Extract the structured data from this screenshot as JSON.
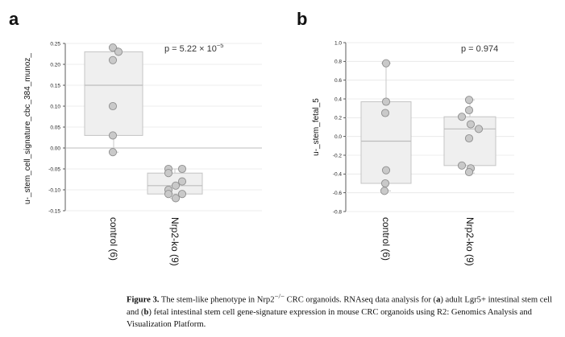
{
  "panels": [
    {
      "letter": "a",
      "ylabel": "u-_stem_cell_signature_cbc_384_munoz_",
      "pvalue": {
        "prefix": "p = 5.22 × 10",
        "exp": "−5"
      },
      "chart_data": {
        "type": "box",
        "categories": [
          "control (6)",
          "Nrp2-ko (9)"
        ],
        "ylim": [
          -0.15,
          0.25
        ],
        "yticks": [
          0.25,
          0.2,
          0.15,
          0.1,
          0.05,
          0.0,
          -0.05,
          -0.1,
          -0.15
        ],
        "tick_labels": [
          "0.25",
          "0.20",
          "0.15",
          "0.10",
          "0.05",
          "0.00",
          "-0.05",
          "-0.10",
          "-0.15"
        ],
        "reference_line": 0,
        "boxes": [
          {
            "q1": 0.03,
            "median": 0.15,
            "q3": 0.23,
            "whisker_low": -0.01,
            "whisker_high": 0.24
          },
          {
            "q1": -0.11,
            "median": -0.09,
            "q3": -0.06,
            "whisker_low": -0.12,
            "whisker_high": -0.05
          }
        ],
        "points": [
          [
            0.24,
            0.23,
            0.21,
            0.1,
            0.03,
            -0.01
          ],
          [
            -0.05,
            -0.05,
            -0.06,
            -0.08,
            -0.09,
            -0.1,
            -0.11,
            -0.11,
            -0.12
          ]
        ]
      }
    },
    {
      "letter": "b",
      "ylabel": "u-_stem_fetal_5",
      "pvalue": {
        "prefix": "p = 0.974",
        "exp": ""
      },
      "chart_data": {
        "type": "box",
        "categories": [
          "control (6)",
          "Nrp2-ko (9)"
        ],
        "ylim": [
          -0.8,
          1.0
        ],
        "yticks": [
          1.0,
          0.8,
          0.6,
          0.4,
          0.2,
          0.0,
          -0.2,
          -0.4,
          -0.6,
          -0.8
        ],
        "tick_labels": [
          "1.0",
          "0.8",
          "0.6",
          "0.4",
          "0.2",
          "0.0",
          "-0.2",
          "-0.4",
          "-0.6",
          "-0.8"
        ],
        "reference_line": null,
        "boxes": [
          {
            "q1": -0.5,
            "median": -0.05,
            "q3": 0.37,
            "whisker_low": -0.58,
            "whisker_high": 0.78
          },
          {
            "q1": -0.31,
            "median": 0.08,
            "q3": 0.21,
            "whisker_low": -0.39,
            "whisker_high": 0.39
          }
        ],
        "points": [
          [
            0.78,
            0.37,
            0.25,
            -0.36,
            -0.5,
            -0.58
          ],
          [
            0.39,
            0.28,
            0.21,
            0.13,
            0.08,
            -0.02,
            -0.31,
            -0.34,
            -0.38
          ]
        ]
      }
    }
  ],
  "caption": {
    "label": "Figure 3.",
    "part1": " The stem-like phenotype in Nrp2",
    "sup": "−/−",
    "part2": " CRC organoids. RNAseq data analysis for (",
    "a": "a",
    "part3": ") adult Lgr5+ intestinal stem cell and (",
    "b": "b",
    "part4": ") fetal intestinal stem cell gene-signature expression in mouse CRC organoids using R2: Genomics Analysis and Visualization Platform."
  }
}
